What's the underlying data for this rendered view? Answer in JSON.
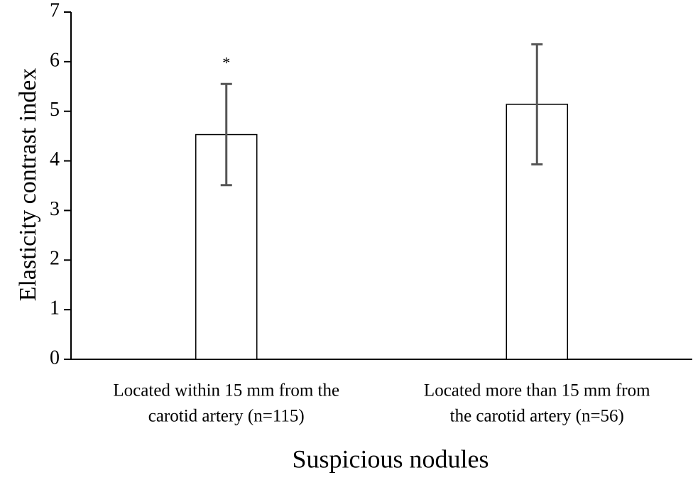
{
  "chart_data": {
    "type": "bar",
    "y_label": "Elasticity contrast index",
    "x_label": "Suspicious nodules",
    "categories": [
      [
        "Located within 15 mm from the",
        "carotid artery (n=115)"
      ],
      [
        "Located more than 15 mm from",
        "the carotid artery (n=56)"
      ]
    ],
    "values": [
      4.53,
      5.14
    ],
    "errors": [
      1.02,
      1.21
    ],
    "annotation": "*",
    "color": "#ffffff",
    "ylim": [
      0,
      7
    ],
    "yticks": [
      0,
      1,
      2,
      3,
      4,
      5,
      6,
      7
    ],
    "grid": false
  }
}
